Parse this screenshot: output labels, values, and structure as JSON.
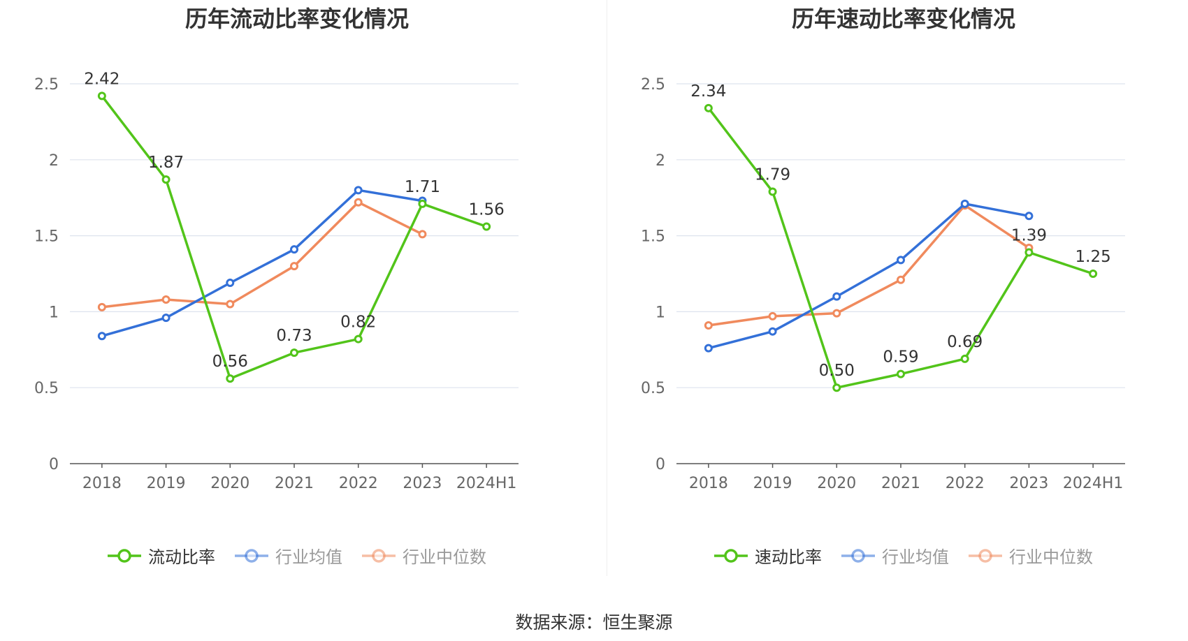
{
  "footer": {
    "source": "数据来源：恒生聚源"
  },
  "colors": {
    "green": "#52c41a",
    "blue": "#3370d8",
    "orange": "#f08a5d",
    "grid": "#dde3ee",
    "axis": "#666666"
  },
  "legend_text_color": {
    "active": "#333333",
    "inactive": "#999999"
  },
  "chart_data": [
    {
      "type": "line",
      "title": "历年流动比率变化情况",
      "categories": [
        "2018",
        "2019",
        "2020",
        "2021",
        "2022",
        "2023",
        "2024H1"
      ],
      "y_ticks": [
        "0",
        "0.5",
        "1",
        "1.5",
        "2",
        "2.5"
      ],
      "ylim": [
        0,
        2.5
      ],
      "grid": true,
      "legend_position": "bottom-center",
      "series": [
        {
          "name": "流动比率",
          "color": "#52c41a",
          "show_labels": true,
          "values": [
            2.42,
            1.87,
            0.56,
            0.73,
            0.82,
            1.71,
            1.56
          ],
          "labels": [
            "2.42",
            "1.87",
            "0.56",
            "0.73",
            "0.82",
            "1.71",
            "1.56"
          ]
        },
        {
          "name": "行业均值",
          "color": "#3370d8",
          "show_labels": false,
          "values": [
            0.84,
            0.96,
            1.19,
            1.41,
            1.8,
            1.73,
            null
          ]
        },
        {
          "name": "行业中位数",
          "color": "#f08a5d",
          "show_labels": false,
          "values": [
            1.03,
            1.08,
            1.05,
            1.3,
            1.72,
            1.51,
            null
          ]
        }
      ]
    },
    {
      "type": "line",
      "title": "历年速动比率变化情况",
      "categories": [
        "2018",
        "2019",
        "2020",
        "2021",
        "2022",
        "2023",
        "2024H1"
      ],
      "y_ticks": [
        "0",
        "0.5",
        "1",
        "1.5",
        "2",
        "2.5"
      ],
      "ylim": [
        0,
        2.5
      ],
      "grid": true,
      "legend_position": "bottom-center",
      "series": [
        {
          "name": "速动比率",
          "color": "#52c41a",
          "show_labels": true,
          "values": [
            2.34,
            1.79,
            0.5,
            0.59,
            0.69,
            1.39,
            1.25
          ],
          "labels": [
            "2.34",
            "1.79",
            "0.50",
            "0.59",
            "0.69",
            "1.39",
            "1.25"
          ]
        },
        {
          "name": "行业均值",
          "color": "#3370d8",
          "show_labels": false,
          "values": [
            0.76,
            0.87,
            1.1,
            1.34,
            1.71,
            1.63,
            null
          ]
        },
        {
          "name": "行业中位数",
          "color": "#f08a5d",
          "show_labels": false,
          "values": [
            0.91,
            0.97,
            0.99,
            1.21,
            1.7,
            1.42,
            null
          ]
        }
      ]
    }
  ]
}
